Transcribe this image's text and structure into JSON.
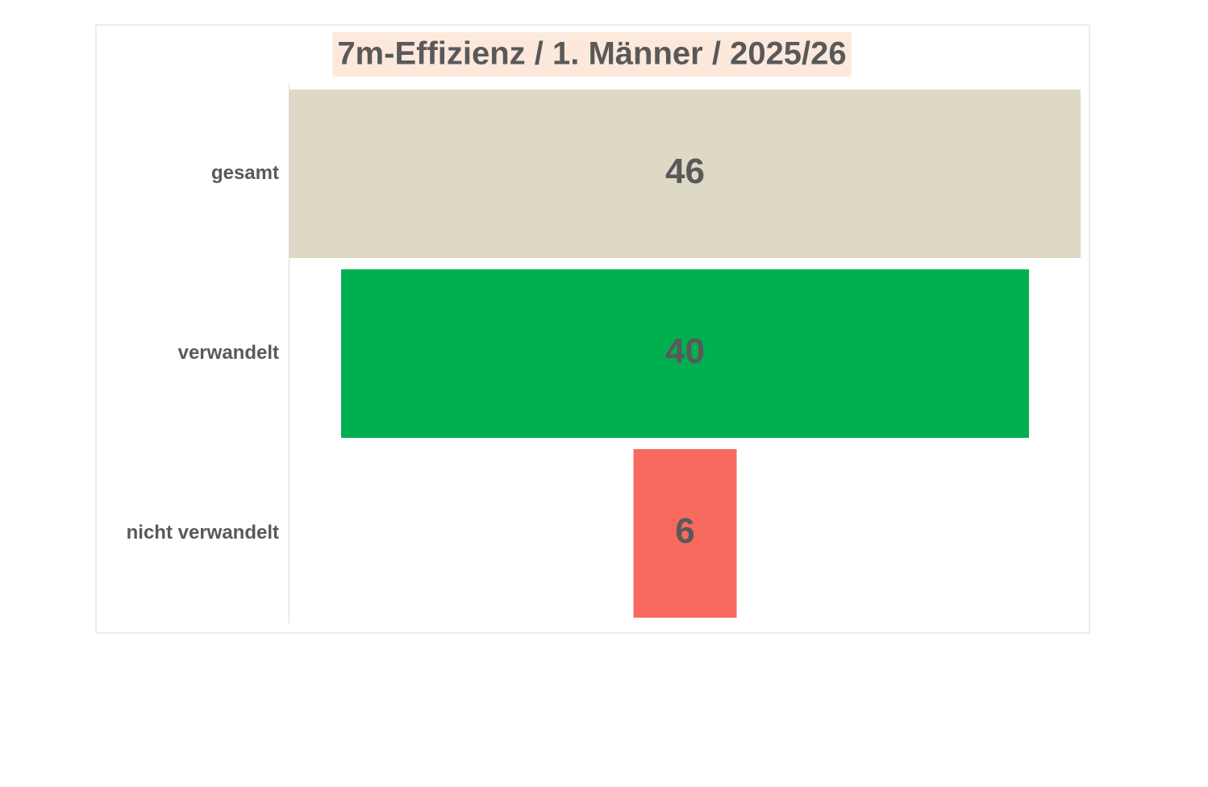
{
  "chart_data": {
    "type": "funnel",
    "title": "7m-Effizienz / 1. Männer / 2025/26",
    "categories": [
      "gesamt",
      "verwandelt",
      "nicht verwandelt"
    ],
    "values": [
      46,
      40,
      6
    ],
    "colors": [
      "#ddd9c4",
      "#00b050",
      "#f8695e"
    ],
    "title_background": "#fde9dc"
  }
}
